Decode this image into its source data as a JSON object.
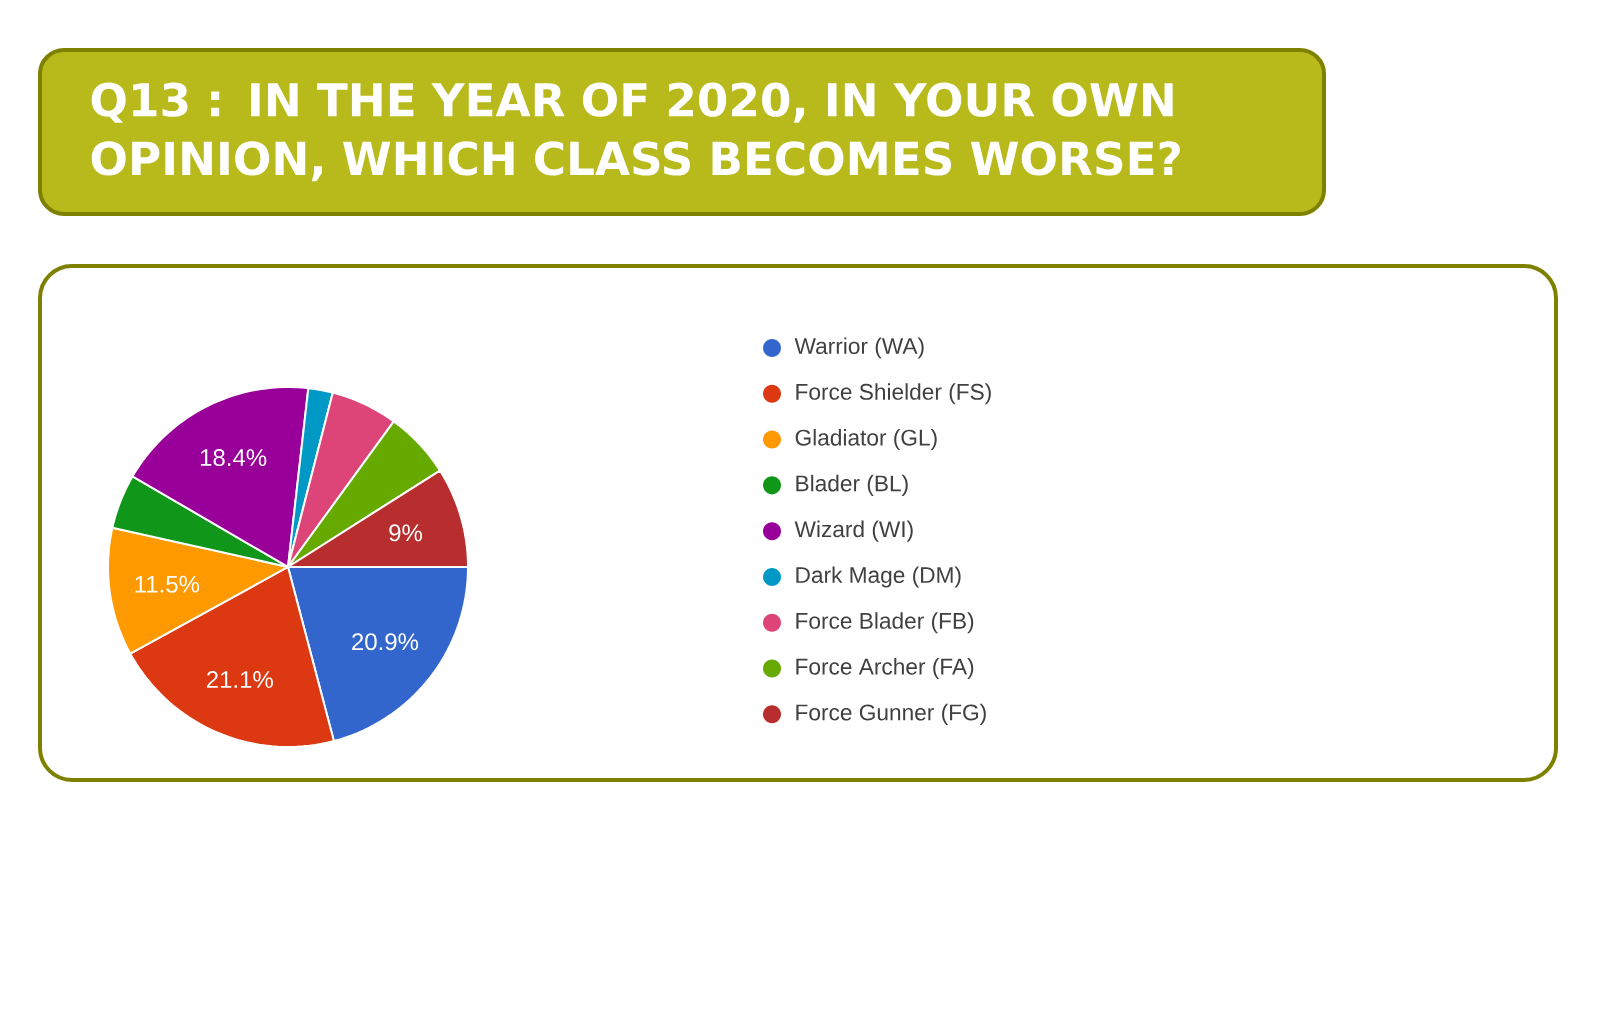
{
  "chart_data": {
    "type": "pie",
    "title": "Q13 : IN THE YEAR OF 2020, IN YOUR OWN OPINION, WHICH CLASS BECOMES WORSE?",
    "categories": [
      "Warrior (WA)",
      "Force Shielder (FS)",
      "Gladiator (GL)",
      "Blader (BL)",
      "Wizard (WI)",
      "Dark Mage (DM)",
      "Force Blader (FB)",
      "Force Archer (FA)",
      "Force Gunner (FG)"
    ],
    "values": [
      20.9,
      21.1,
      11.5,
      4.9,
      18.4,
      2.2,
      6,
      6,
      9
    ],
    "colors": [
      "#3366cc",
      "#dc3912",
      "#ff9900",
      "#109618",
      "#990099",
      "#0099c6",
      "#dd4477",
      "#66aa00",
      "#b82e2e"
    ],
    "value_labels": [
      "20.9%",
      "21.1%",
      "11.5%",
      null,
      "18.4%",
      null,
      null,
      null,
      "9%"
    ],
    "legend": "right"
  }
}
